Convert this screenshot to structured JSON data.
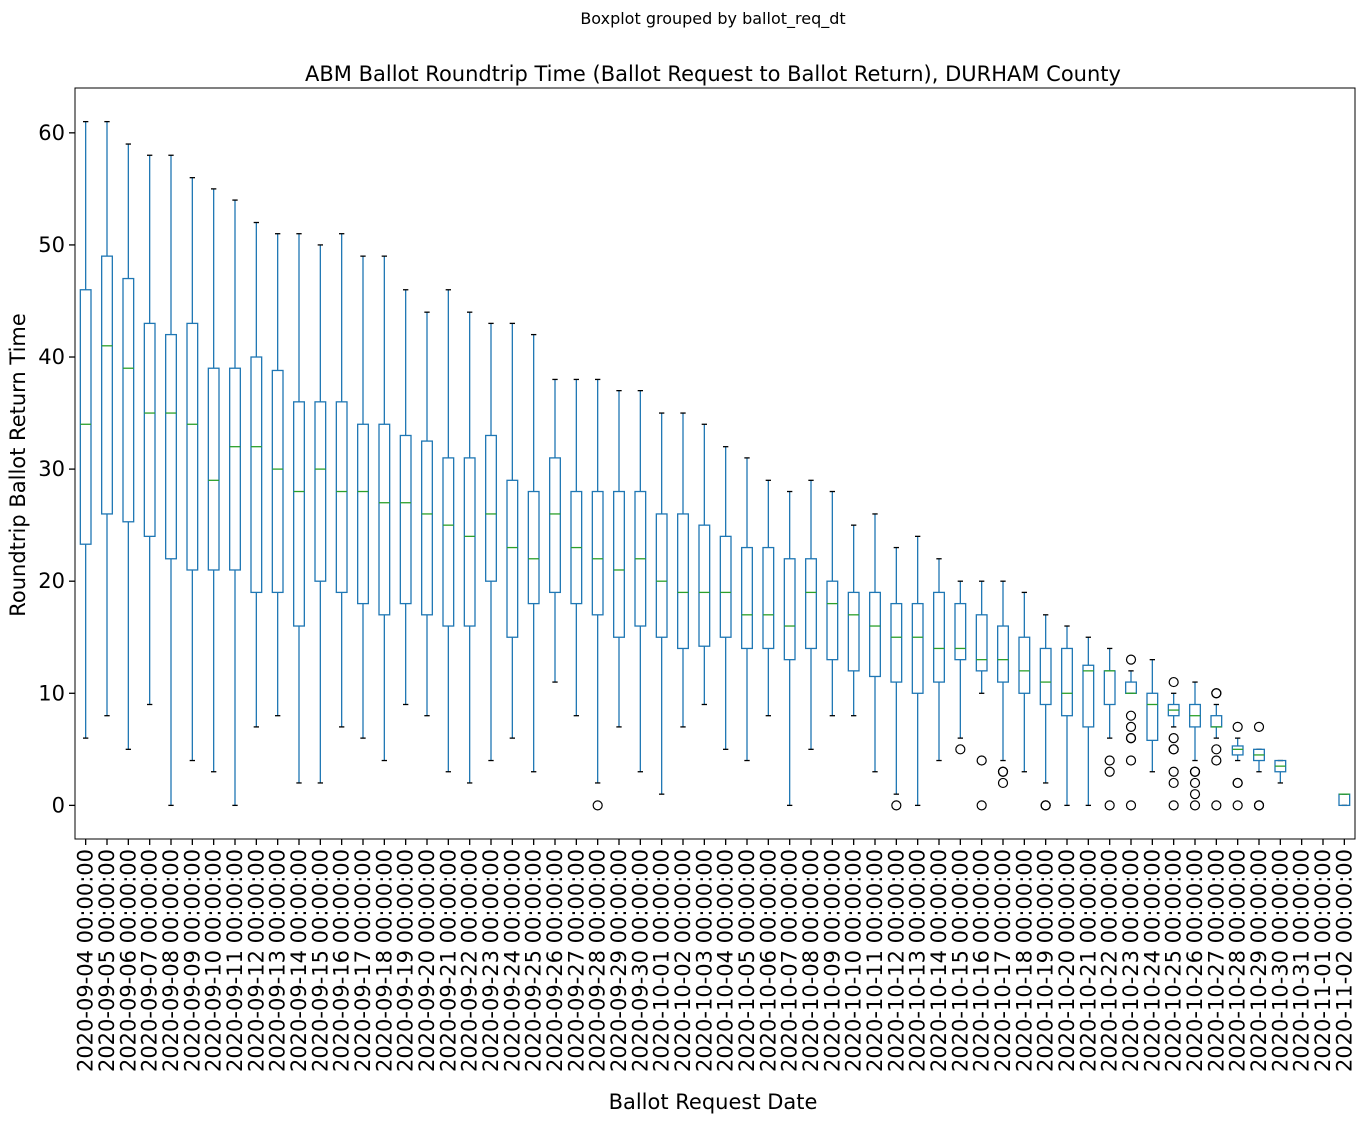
{
  "suptitle": "Boxplot grouped by ballot_req_dt",
  "chart_data": {
    "type": "boxplot",
    "title": "ABM Ballot Roundtrip Time (Ballot Request to Ballot Return), DURHAM County",
    "xlabel": "Ballot Request Date",
    "ylabel": "Roundtrip Ballot Return Time",
    "ylim": [
      -3,
      64
    ],
    "yticks": [
      0,
      10,
      20,
      30,
      40,
      50,
      60
    ],
    "grid": false,
    "colors": {
      "box": "#1f77b4",
      "median": "#2ca02c",
      "whisker": "#1f77b4",
      "cap": "#000000",
      "flier": "#000000"
    },
    "categories": [
      "2020-09-04 00:00:00",
      "2020-09-05 00:00:00",
      "2020-09-06 00:00:00",
      "2020-09-07 00:00:00",
      "2020-09-08 00:00:00",
      "2020-09-09 00:00:00",
      "2020-09-10 00:00:00",
      "2020-09-11 00:00:00",
      "2020-09-12 00:00:00",
      "2020-09-13 00:00:00",
      "2020-09-14 00:00:00",
      "2020-09-15 00:00:00",
      "2020-09-16 00:00:00",
      "2020-09-17 00:00:00",
      "2020-09-18 00:00:00",
      "2020-09-19 00:00:00",
      "2020-09-20 00:00:00",
      "2020-09-21 00:00:00",
      "2020-09-22 00:00:00",
      "2020-09-23 00:00:00",
      "2020-09-24 00:00:00",
      "2020-09-25 00:00:00",
      "2020-09-26 00:00:00",
      "2020-09-27 00:00:00",
      "2020-09-28 00:00:00",
      "2020-09-29 00:00:00",
      "2020-09-30 00:00:00",
      "2020-10-01 00:00:00",
      "2020-10-02 00:00:00",
      "2020-10-03 00:00:00",
      "2020-10-04 00:00:00",
      "2020-10-05 00:00:00",
      "2020-10-06 00:00:00",
      "2020-10-07 00:00:00",
      "2020-10-08 00:00:00",
      "2020-10-09 00:00:00",
      "2020-10-10 00:00:00",
      "2020-10-11 00:00:00",
      "2020-10-12 00:00:00",
      "2020-10-13 00:00:00",
      "2020-10-14 00:00:00",
      "2020-10-15 00:00:00",
      "2020-10-16 00:00:00",
      "2020-10-17 00:00:00",
      "2020-10-18 00:00:00",
      "2020-10-19 00:00:00",
      "2020-10-20 00:00:00",
      "2020-10-21 00:00:00",
      "2020-10-22 00:00:00",
      "2020-10-23 00:00:00",
      "2020-10-24 00:00:00",
      "2020-10-25 00:00:00",
      "2020-10-26 00:00:00",
      "2020-10-27 00:00:00",
      "2020-10-28 00:00:00",
      "2020-10-29 00:00:00",
      "2020-10-30 00:00:00",
      "2020-10-31 00:00:00",
      "2020-11-01 00:00:00",
      "2020-11-02 00:00:00"
    ],
    "boxes": [
      {
        "whislo": 6,
        "q1": 23.3,
        "med": 34,
        "q3": 46,
        "whishi": 61,
        "fliers": []
      },
      {
        "whislo": 8,
        "q1": 26,
        "med": 41,
        "q3": 49,
        "whishi": 61,
        "fliers": []
      },
      {
        "whislo": 5,
        "q1": 25.3,
        "med": 39,
        "q3": 47,
        "whishi": 59,
        "fliers": []
      },
      {
        "whislo": 9,
        "q1": 24,
        "med": 35,
        "q3": 43,
        "whishi": 58,
        "fliers": []
      },
      {
        "whislo": 0,
        "q1": 22,
        "med": 35,
        "q3": 42,
        "whishi": 58,
        "fliers": []
      },
      {
        "whislo": 4,
        "q1": 21,
        "med": 34,
        "q3": 43,
        "whishi": 56,
        "fliers": []
      },
      {
        "whislo": 3,
        "q1": 21,
        "med": 29,
        "q3": 39,
        "whishi": 55,
        "fliers": []
      },
      {
        "whislo": 0,
        "q1": 21,
        "med": 32,
        "q3": 39,
        "whishi": 54,
        "fliers": []
      },
      {
        "whislo": 7,
        "q1": 19,
        "med": 32,
        "q3": 40,
        "whishi": 52,
        "fliers": []
      },
      {
        "whislo": 8,
        "q1": 19,
        "med": 30,
        "q3": 38.8,
        "whishi": 51,
        "fliers": []
      },
      {
        "whislo": 2,
        "q1": 16,
        "med": 28,
        "q3": 36,
        "whishi": 51,
        "fliers": []
      },
      {
        "whislo": 2,
        "q1": 20,
        "med": 30,
        "q3": 36,
        "whishi": 50,
        "fliers": []
      },
      {
        "whislo": 7,
        "q1": 19,
        "med": 28,
        "q3": 36,
        "whishi": 51,
        "fliers": []
      },
      {
        "whislo": 6,
        "q1": 18,
        "med": 28,
        "q3": 34,
        "whishi": 49,
        "fliers": []
      },
      {
        "whislo": 4,
        "q1": 17,
        "med": 27,
        "q3": 34,
        "whishi": 49,
        "fliers": []
      },
      {
        "whislo": 9,
        "q1": 18,
        "med": 27,
        "q3": 33,
        "whishi": 46,
        "fliers": []
      },
      {
        "whislo": 8,
        "q1": 17,
        "med": 26,
        "q3": 32.5,
        "whishi": 44,
        "fliers": []
      },
      {
        "whislo": 3,
        "q1": 16,
        "med": 25,
        "q3": 31,
        "whishi": 46,
        "fliers": []
      },
      {
        "whislo": 2,
        "q1": 16,
        "med": 24,
        "q3": 31,
        "whishi": 44,
        "fliers": []
      },
      {
        "whislo": 4,
        "q1": 20,
        "med": 26,
        "q3": 33,
        "whishi": 43,
        "fliers": []
      },
      {
        "whislo": 6,
        "q1": 15,
        "med": 23,
        "q3": 29,
        "whishi": 43,
        "fliers": []
      },
      {
        "whislo": 3,
        "q1": 18,
        "med": 22,
        "q3": 28,
        "whishi": 42,
        "fliers": []
      },
      {
        "whislo": 11,
        "q1": 19,
        "med": 26,
        "q3": 31,
        "whishi": 38,
        "fliers": []
      },
      {
        "whislo": 8,
        "q1": 18,
        "med": 23,
        "q3": 28,
        "whishi": 38,
        "fliers": []
      },
      {
        "whislo": 2,
        "q1": 17,
        "med": 22,
        "q3": 28,
        "whishi": 38,
        "fliers": [
          0
        ]
      },
      {
        "whislo": 7,
        "q1": 15,
        "med": 21,
        "q3": 28,
        "whishi": 37,
        "fliers": []
      },
      {
        "whislo": 3,
        "q1": 16,
        "med": 22,
        "q3": 28,
        "whishi": 37,
        "fliers": []
      },
      {
        "whislo": 1,
        "q1": 15,
        "med": 20,
        "q3": 26,
        "whishi": 35,
        "fliers": []
      },
      {
        "whislo": 7,
        "q1": 14,
        "med": 19,
        "q3": 26,
        "whishi": 35,
        "fliers": []
      },
      {
        "whislo": 9,
        "q1": 14.2,
        "med": 19,
        "q3": 25,
        "whishi": 34,
        "fliers": []
      },
      {
        "whislo": 5,
        "q1": 15,
        "med": 19,
        "q3": 24,
        "whishi": 32,
        "fliers": []
      },
      {
        "whislo": 4,
        "q1": 14,
        "med": 17,
        "q3": 23,
        "whishi": 31,
        "fliers": []
      },
      {
        "whislo": 8,
        "q1": 14,
        "med": 17,
        "q3": 23,
        "whishi": 29,
        "fliers": []
      },
      {
        "whislo": 0,
        "q1": 13,
        "med": 16,
        "q3": 22,
        "whishi": 28,
        "fliers": []
      },
      {
        "whislo": 5,
        "q1": 14,
        "med": 19,
        "q3": 22,
        "whishi": 29,
        "fliers": []
      },
      {
        "whislo": 8,
        "q1": 13,
        "med": 18,
        "q3": 20,
        "whishi": 28,
        "fliers": []
      },
      {
        "whislo": 8,
        "q1": 12,
        "med": 17,
        "q3": 19,
        "whishi": 25,
        "fliers": []
      },
      {
        "whislo": 3,
        "q1": 11.5,
        "med": 16,
        "q3": 19,
        "whishi": 26,
        "fliers": []
      },
      {
        "whislo": 1,
        "q1": 11,
        "med": 15,
        "q3": 18,
        "whishi": 23,
        "fliers": [
          0
        ]
      },
      {
        "whislo": 0,
        "q1": 10,
        "med": 15,
        "q3": 18,
        "whishi": 24,
        "fliers": []
      },
      {
        "whislo": 4,
        "q1": 11,
        "med": 14,
        "q3": 19,
        "whishi": 22,
        "fliers": []
      },
      {
        "whislo": 6,
        "q1": 13,
        "med": 14,
        "q3": 18,
        "whishi": 20,
        "fliers": [
          5
        ]
      },
      {
        "whislo": 10,
        "q1": 12,
        "med": 13,
        "q3": 17,
        "whishi": 20,
        "fliers": [
          4,
          0
        ]
      },
      {
        "whislo": 4,
        "q1": 11,
        "med": 13,
        "q3": 16,
        "whishi": 20,
        "fliers": [
          3,
          3,
          2
        ]
      },
      {
        "whislo": 3,
        "q1": 10,
        "med": 12,
        "q3": 15,
        "whishi": 19,
        "fliers": []
      },
      {
        "whislo": 2,
        "q1": 9,
        "med": 11,
        "q3": 14,
        "whishi": 17,
        "fliers": [
          0,
          0
        ]
      },
      {
        "whislo": 0,
        "q1": 8,
        "med": 10,
        "q3": 14,
        "whishi": 16,
        "fliers": []
      },
      {
        "whislo": 0,
        "q1": 7,
        "med": 12,
        "q3": 12.5,
        "whishi": 15,
        "fliers": []
      },
      {
        "whislo": 6,
        "q1": 9,
        "med": 12,
        "q3": 12,
        "whishi": 14,
        "fliers": [
          4,
          3,
          0
        ]
      },
      {
        "whislo": 10,
        "q1": 10,
        "med": 10,
        "q3": 11,
        "whishi": 12,
        "fliers": [
          13,
          8,
          7,
          6,
          6,
          4,
          0
        ]
      },
      {
        "whislo": 3,
        "q1": 5.8,
        "med": 9,
        "q3": 10,
        "whishi": 13,
        "fliers": []
      },
      {
        "whislo": 7,
        "q1": 8,
        "med": 8.5,
        "q3": 9,
        "whishi": 10,
        "fliers": [
          11,
          6,
          5,
          5,
          3,
          2,
          0
        ]
      },
      {
        "whislo": 4,
        "q1": 7,
        "med": 8,
        "q3": 9,
        "whishi": 11,
        "fliers": [
          3,
          3,
          2,
          1,
          0
        ]
      },
      {
        "whislo": 6,
        "q1": 7,
        "med": 7,
        "q3": 8,
        "whishi": 9,
        "fliers": [
          10,
          10,
          5,
          4,
          0
        ]
      },
      {
        "whislo": 4,
        "q1": 4.5,
        "med": 5,
        "q3": 5.3,
        "whishi": 6,
        "fliers": [
          7,
          2,
          2,
          0
        ]
      },
      {
        "whislo": 3,
        "q1": 4,
        "med": 4.5,
        "q3": 5,
        "whishi": 5,
        "fliers": [
          7,
          0,
          0
        ]
      },
      {
        "whislo": 2,
        "q1": 3,
        "med": 3.5,
        "q3": 4,
        "whishi": 4,
        "fliers": []
      },
      null,
      null,
      {
        "whislo": 0,
        "q1": 0,
        "med": 1,
        "q3": 1,
        "whishi": 1,
        "fliers": []
      }
    ]
  }
}
